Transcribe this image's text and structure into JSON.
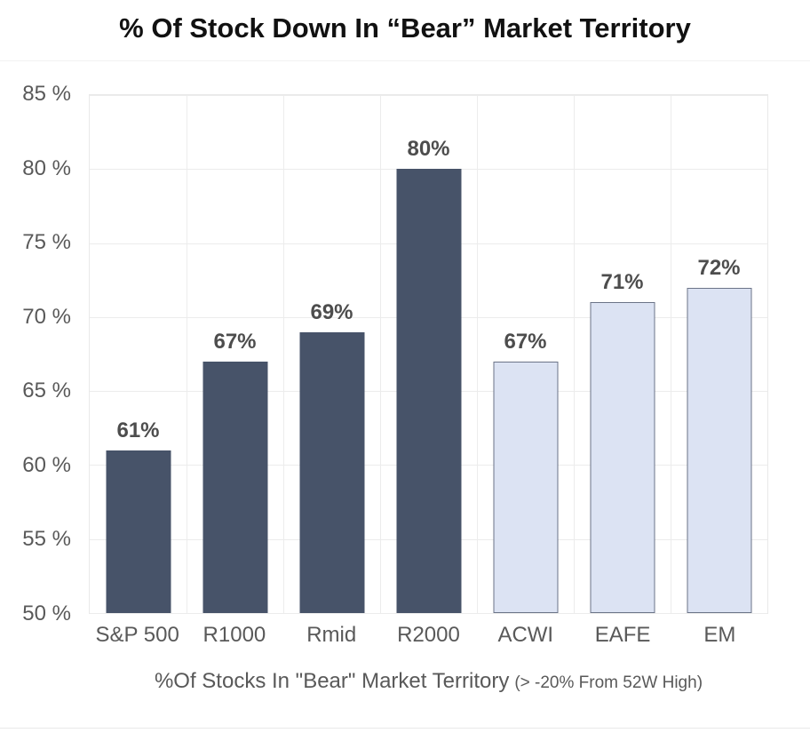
{
  "chart_data": {
    "type": "bar",
    "title": "% Of Stock Down In “Bear” Market Territory",
    "categories": [
      "S&P 500",
      "R1000",
      "Rmid",
      "R2000",
      "ACWI",
      "EAFE",
      "EM"
    ],
    "values": [
      61,
      67,
      69,
      80,
      67,
      71,
      72
    ],
    "value_labels": [
      "61%",
      "67%",
      "69%",
      "80%",
      "67%",
      "71%",
      "72%"
    ],
    "bar_styles": [
      "dark",
      "dark",
      "dark",
      "dark",
      "light",
      "light",
      "light"
    ],
    "ylim": [
      50,
      85
    ],
    "yticks": [
      85,
      80,
      75,
      70,
      65,
      60,
      55,
      50
    ],
    "ytick_labels": [
      "85 %",
      "80 %",
      "75 %",
      "70 %",
      "65 %",
      "60 %",
      "55 %",
      "50 %"
    ],
    "xlabel": "%Of Stocks In \"Bear\" Market Territory",
    "xlabel_note": "(> -20% From 52W High)",
    "grid": true,
    "legend_position": "none",
    "colors": {
      "bar_dark": "#475369",
      "bar_light_fill": "#DCE3F3",
      "bar_light_border": "#6B7488",
      "gridline": "#ececec",
      "plot_border": "#e9e9e9",
      "axis_text": "#595959",
      "value_label": "#4d4d4d",
      "title_text": "#111111"
    }
  }
}
